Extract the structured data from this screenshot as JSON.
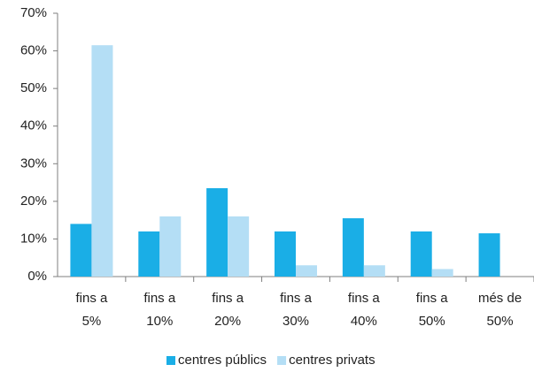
{
  "chart_data": {
    "type": "bar",
    "categories": [
      [
        "fins a",
        "5%"
      ],
      [
        "fins a",
        "10%"
      ],
      [
        "fins a",
        "20%"
      ],
      [
        "fins a",
        "30%"
      ],
      [
        "fins a",
        "40%"
      ],
      [
        "fins a",
        "50%"
      ],
      [
        "més de",
        "50%"
      ]
    ],
    "series": [
      {
        "name": "centres públics",
        "color": "#1aaee6",
        "values": [
          14,
          12,
          23.5,
          12,
          15.5,
          12,
          11.5
        ]
      },
      {
        "name": "centres privats",
        "color": "#b4def5",
        "values": [
          61.5,
          16,
          16,
          3,
          3,
          2,
          0
        ]
      }
    ],
    "ylim": [
      0,
      70
    ],
    "yticks": [
      {
        "value": 0,
        "label": "0%"
      },
      {
        "value": 10,
        "label": "10%"
      },
      {
        "value": 20,
        "label": "20%"
      },
      {
        "value": 30,
        "label": "30%"
      },
      {
        "value": 40,
        "label": "40%"
      },
      {
        "value": 50,
        "label": "50%"
      },
      {
        "value": 60,
        "label": "60%"
      },
      {
        "value": 70,
        "label": "70%"
      }
    ],
    "grid": false,
    "legend": "bottom"
  }
}
